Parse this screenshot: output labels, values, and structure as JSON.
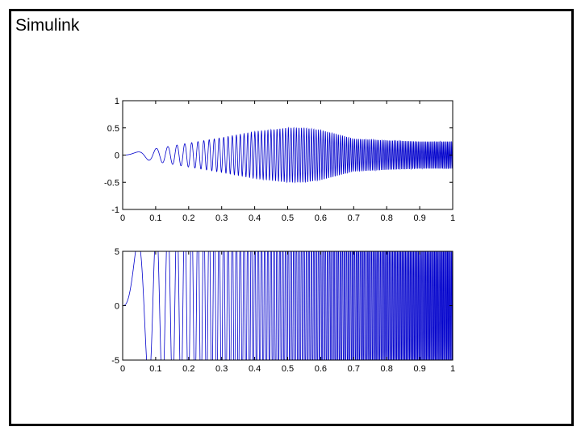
{
  "slide": {
    "title": "Simulink"
  },
  "chart_data": [
    {
      "type": "line",
      "title": "",
      "xlabel": "",
      "ylabel": "",
      "xlim": [
        0,
        1
      ],
      "ylim": [
        -1,
        1
      ],
      "xticks": [
        0,
        0.1,
        0.2,
        0.3,
        0.4,
        0.5,
        0.6,
        0.7,
        0.8,
        0.9,
        1
      ],
      "xtick_labels": [
        "0",
        "0.1",
        "0.2",
        "0.3",
        "0.4",
        "0.5",
        "0.6",
        "0.7",
        "0.8",
        "0.9",
        "1"
      ],
      "yticks": [
        -1,
        -0.5,
        0,
        0.5,
        1
      ],
      "ytick_labels": [
        "-1",
        "-0.5",
        "0",
        "0.5",
        "1"
      ],
      "grid": false,
      "line_color": "#0000cc",
      "signal": "chirp",
      "chirp_cycles": 120,
      "envelope": {
        "t": [
          0,
          0.05,
          0.1,
          0.15,
          0.2,
          0.3,
          0.4,
          0.5,
          0.55,
          0.6,
          0.65,
          0.7,
          0.8,
          0.9,
          1.0
        ],
        "amplitude": [
          0.02,
          0.06,
          0.12,
          0.17,
          0.22,
          0.32,
          0.43,
          0.5,
          0.5,
          0.46,
          0.38,
          0.3,
          0.27,
          0.25,
          0.25
        ]
      }
    },
    {
      "type": "line",
      "title": "",
      "xlabel": "",
      "ylabel": "",
      "xlim": [
        0,
        1
      ],
      "ylim": [
        -5,
        5
      ],
      "xticks": [
        0,
        0.1,
        0.2,
        0.3,
        0.4,
        0.5,
        0.6,
        0.7,
        0.8,
        0.9,
        1
      ],
      "xtick_labels": [
        "0",
        "0.1",
        "0.2",
        "0.3",
        "0.4",
        "0.5",
        "0.6",
        "0.7",
        "0.8",
        "0.9",
        "1"
      ],
      "yticks": [
        -5,
        0,
        5
      ],
      "ytick_labels": [
        "-5",
        "0",
        "5"
      ],
      "grid": false,
      "line_color": "#0000cc",
      "signal": "chirp",
      "chirp_cycles": 120,
      "envelope": {
        "t": [
          0,
          0.02,
          0.04,
          0.06,
          0.1,
          0.2,
          1.0
        ],
        "amplitude": [
          1.0,
          3.5,
          5.6,
          6.5,
          7.5,
          9,
          12
        ]
      },
      "clipped_at": [
        -5,
        5
      ]
    }
  ]
}
